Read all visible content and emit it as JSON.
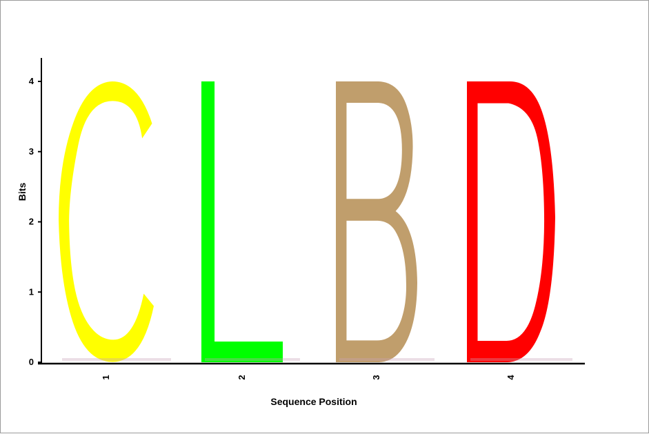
{
  "chart_data": {
    "type": "sequence-logo",
    "xlabel": "Sequence Position",
    "ylabel": "Bits",
    "ylim": [
      0,
      4
    ],
    "y_ticks": [
      "0",
      "1",
      "2",
      "3",
      "4"
    ],
    "positions": [
      "1",
      "2",
      "3",
      "4"
    ],
    "letters": [
      {
        "position": "1",
        "letter": "C",
        "bits": 4.0,
        "color": "#ffff00"
      },
      {
        "position": "2",
        "letter": "L",
        "bits": 4.0,
        "color": "#00ff00"
      },
      {
        "position": "3",
        "letter": "B",
        "bits": 4.0,
        "color": "#c09e6c"
      },
      {
        "position": "4",
        "letter": "D",
        "bits": 4.0,
        "color": "#ff0000"
      }
    ],
    "grid": false,
    "legend": "none"
  }
}
